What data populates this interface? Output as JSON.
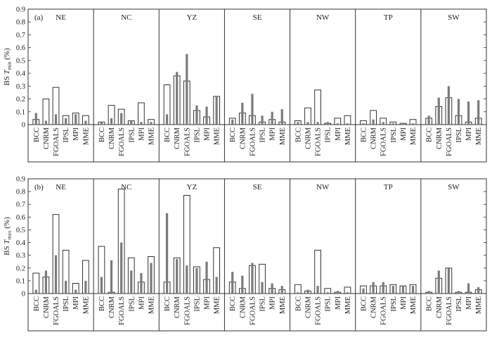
{
  "chart_data": [
    {
      "type": "bar",
      "panel_label": "(a)",
      "ylabel_main": "BS_T",
      "ylabel_sub": "min",
      "ylabel_unit": "(%)",
      "ylim": [
        0,
        0.9
      ],
      "yticks": [
        "0",
        "0.1",
        "0.2",
        "0.3",
        "0.4",
        "0.5",
        "0.6",
        "0.7",
        "0.8",
        "0.9"
      ],
      "models": [
        "BCC",
        "CNRM",
        "FGOALS",
        "IPSL",
        "MPI",
        "MME"
      ],
      "regions": [
        {
          "name": "NE",
          "values": [
            [
              0.04,
              0.09
            ],
            [
              0.2,
              0.03
            ],
            [
              0.29,
              0.08
            ],
            [
              0.07,
              0.05
            ],
            [
              0.09,
              0.08
            ],
            [
              0.07,
              0.03
            ]
          ]
        },
        {
          "name": "NC",
          "values": [
            [
              0.02,
              0.02
            ],
            [
              0.15,
              0.05
            ],
            [
              0.12,
              0.09
            ],
            [
              0.03,
              0.03
            ],
            [
              0.17,
              0.02
            ],
            [
              0.04,
              0.02
            ]
          ]
        },
        {
          "name": "YZ",
          "values": [
            [
              0.31,
              0.08
            ],
            [
              0.38,
              0.41
            ],
            [
              0.34,
              0.55
            ],
            [
              0.11,
              0.15
            ],
            [
              0.06,
              0.14
            ],
            [
              0.22,
              0.22
            ]
          ]
        },
        {
          "name": "SE",
          "values": [
            [
              0.05,
              0.04
            ],
            [
              0.09,
              0.17
            ],
            [
              0.07,
              0.24
            ],
            [
              0.02,
              0.07
            ],
            [
              0.04,
              0.1
            ],
            [
              0.02,
              0.12
            ]
          ]
        },
        {
          "name": "NW",
          "values": [
            [
              0.03,
              0.02
            ],
            [
              0.13,
              0.02
            ],
            [
              0.27,
              0.02
            ],
            [
              0.01,
              0.02
            ],
            [
              0.05,
              0.01
            ],
            [
              0.07,
              0.01
            ]
          ]
        },
        {
          "name": "TP",
          "values": [
            [
              0.03,
              0.01
            ],
            [
              0.11,
              0.04
            ],
            [
              0.05,
              0.02
            ],
            [
              0.02,
              0.01
            ],
            [
              0.01,
              0.01
            ],
            [
              0.04,
              0.01
            ]
          ]
        },
        {
          "name": "SW",
          "values": [
            [
              0.05,
              0.07
            ],
            [
              0.14,
              0.21
            ],
            [
              0.21,
              0.3
            ],
            [
              0.07,
              0.2
            ],
            [
              0.02,
              0.18
            ],
            [
              0.05,
              0.19
            ]
          ]
        }
      ]
    },
    {
      "type": "bar",
      "panel_label": "(b)",
      "ylabel_main": "BS_T",
      "ylabel_sub": "max",
      "ylabel_unit": "(%)",
      "ylim": [
        0,
        0.9
      ],
      "yticks": [
        "0",
        "0.1",
        "0.2",
        "0.3",
        "0.4",
        "0.5",
        "0.6",
        "0.7",
        "0.8",
        "0.9"
      ],
      "models": [
        "BCC",
        "CNRM",
        "FGOALS",
        "IPSL",
        "MPI",
        "MME"
      ],
      "regions": [
        {
          "name": "NE",
          "values": [
            [
              0.16,
              0.03
            ],
            [
              0.13,
              0.18
            ],
            [
              0.62,
              0.3
            ],
            [
              0.34,
              0.1
            ],
            [
              0.08,
              0.03
            ],
            [
              0.26,
              0.1
            ]
          ]
        },
        {
          "name": "NC",
          "values": [
            [
              0.37,
              0.13
            ],
            [
              0.01,
              0.26
            ],
            [
              0.82,
              0.4
            ],
            [
              0.28,
              0.18
            ],
            [
              0.09,
              0.16
            ],
            [
              0.29,
              0.24
            ]
          ]
        },
        {
          "name": "YZ",
          "values": [
            [
              0.09,
              0.63
            ],
            [
              0.28,
              0.27
            ],
            [
              0.77,
              0.22
            ],
            [
              0.21,
              0.2
            ],
            [
              0.11,
              0.25
            ],
            [
              0.36,
              0.13
            ]
          ]
        },
        {
          "name": "SE",
          "values": [
            [
              0.09,
              0.17
            ],
            [
              0.04,
              0.14
            ],
            [
              0.22,
              0.24
            ],
            [
              0.23,
              0.09
            ],
            [
              0.04,
              0.08
            ],
            [
              0.03,
              0.06
            ]
          ]
        },
        {
          "name": "NW",
          "values": [
            [
              0.07,
              0.01
            ],
            [
              0.02,
              0.03
            ],
            [
              0.34,
              0.06
            ],
            [
              0.04,
              0.01
            ],
            [
              0.01,
              0.02
            ],
            [
              0.05,
              0.01
            ]
          ]
        },
        {
          "name": "TP",
          "values": [
            [
              0.06,
              0.04
            ],
            [
              0.06,
              0.09
            ],
            [
              0.06,
              0.09
            ],
            [
              0.07,
              0.06
            ],
            [
              0.06,
              0.06
            ],
            [
              0.07,
              0.06
            ]
          ]
        },
        {
          "name": "SW",
          "values": [
            [
              0.01,
              0.02
            ],
            [
              0.12,
              0.18
            ],
            [
              0.2,
              0.2
            ],
            [
              0.01,
              0.02
            ],
            [
              0.01,
              0.08
            ],
            [
              0.03,
              0.05
            ]
          ]
        }
      ]
    }
  ]
}
